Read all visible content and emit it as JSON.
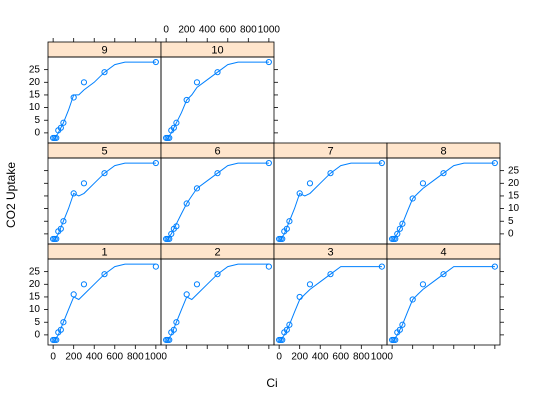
{
  "chart_data": {
    "type": "scatter",
    "xlabel": "Ci",
    "ylabel": "CO2 Uptake",
    "xlim": [
      -50,
      1050
    ],
    "ylim": [
      -4,
      30
    ],
    "xticks": [
      0,
      200,
      400,
      600,
      800,
      1000
    ],
    "yticks": [
      0,
      5,
      10,
      15,
      20,
      25
    ],
    "color": "#0080ff",
    "strip_color": "#ffe5cc",
    "fit_x": [
      0,
      50,
      100,
      150,
      200,
      250,
      300,
      400,
      500,
      600,
      700,
      800,
      900,
      1000
    ],
    "panels": [
      {
        "label": "1",
        "x": [
          0,
          15,
          30,
          50,
          75,
          100,
          200,
          300,
          500,
          1000
        ],
        "values": [
          -2,
          -2,
          -2,
          1,
          2,
          5,
          16,
          20,
          24,
          27
        ],
        "fit": [
          -3,
          0,
          5,
          10,
          15,
          14,
          16,
          20,
          24,
          27,
          28,
          28,
          28,
          28
        ]
      },
      {
        "label": "2",
        "x": [
          0,
          15,
          30,
          50,
          75,
          100,
          200,
          300,
          500,
          1000
        ],
        "values": [
          -2,
          -2,
          -2,
          1,
          2,
          5,
          16,
          20,
          24,
          27
        ],
        "fit": [
          -3,
          0,
          5,
          10,
          15,
          14,
          16,
          20,
          24,
          27,
          28,
          28,
          28,
          28
        ]
      },
      {
        "label": "3",
        "x": [
          0,
          15,
          30,
          50,
          75,
          100,
          200,
          300,
          500,
          1000
        ],
        "values": [
          -2,
          -2,
          -2,
          1,
          2,
          4,
          15,
          20,
          24,
          27
        ],
        "fit": [
          -3,
          0,
          4,
          9,
          14,
          16,
          18,
          21,
          24,
          27,
          27,
          27,
          27,
          27
        ]
      },
      {
        "label": "4",
        "x": [
          0,
          15,
          30,
          50,
          75,
          100,
          200,
          300,
          500,
          1000
        ],
        "values": [
          -2,
          -2,
          -2,
          1,
          2,
          4,
          14,
          20,
          24,
          27
        ],
        "fit": [
          -3,
          0,
          4,
          9,
          14,
          16,
          18,
          21,
          24,
          27,
          27,
          27,
          27,
          27
        ]
      },
      {
        "label": "5",
        "x": [
          0,
          15,
          30,
          50,
          75,
          100,
          200,
          300,
          500,
          1000
        ],
        "values": [
          -2,
          -2,
          -2,
          1,
          2,
          5,
          16,
          20,
          24,
          28
        ],
        "fit": [
          -3,
          0,
          5,
          10,
          16,
          15,
          16,
          20,
          24,
          27,
          28,
          28,
          28,
          28
        ]
      },
      {
        "label": "6",
        "x": [
          0,
          15,
          30,
          50,
          75,
          100,
          200,
          300,
          500,
          1000
        ],
        "values": [
          -2,
          -2,
          -2,
          0,
          2,
          3,
          12,
          18,
          24,
          28
        ],
        "fit": [
          -3,
          0,
          4,
          8,
          12,
          15,
          18,
          21,
          24,
          27,
          28,
          28,
          28,
          28
        ]
      },
      {
        "label": "7",
        "x": [
          0,
          15,
          30,
          50,
          75,
          100,
          200,
          300,
          500,
          1000
        ],
        "values": [
          -2,
          -2,
          -2,
          1,
          2,
          5,
          16,
          20,
          24,
          28
        ],
        "fit": [
          -3,
          0,
          5,
          10,
          16,
          15,
          16,
          20,
          24,
          27,
          28,
          28,
          28,
          28
        ]
      },
      {
        "label": "8",
        "x": [
          0,
          15,
          30,
          50,
          75,
          100,
          200,
          300,
          500,
          1000
        ],
        "values": [
          -2,
          -2,
          -2,
          0,
          2,
          4,
          14,
          20,
          24,
          28
        ],
        "fit": [
          -3,
          0,
          4,
          9,
          14,
          16,
          18,
          21,
          24,
          27,
          28,
          28,
          28,
          28
        ]
      },
      {
        "label": "9",
        "x": [
          0,
          15,
          30,
          50,
          75,
          100,
          200,
          300,
          500,
          1000
        ],
        "values": [
          -2,
          -2,
          -2,
          1,
          2,
          4,
          14,
          20,
          24,
          28
        ],
        "fit": [
          -3,
          0,
          4,
          9,
          15,
          15,
          17,
          20,
          24,
          27,
          28,
          28,
          28,
          28
        ]
      },
      {
        "label": "10",
        "x": [
          0,
          15,
          30,
          50,
          75,
          100,
          200,
          300,
          500,
          1000
        ],
        "values": [
          -2,
          -2,
          -2,
          1,
          2,
          4,
          13,
          20,
          24,
          28
        ],
        "fit": [
          -3,
          0,
          4,
          8,
          13,
          15,
          18,
          21,
          24,
          27,
          28,
          28,
          28,
          28
        ]
      }
    ]
  }
}
